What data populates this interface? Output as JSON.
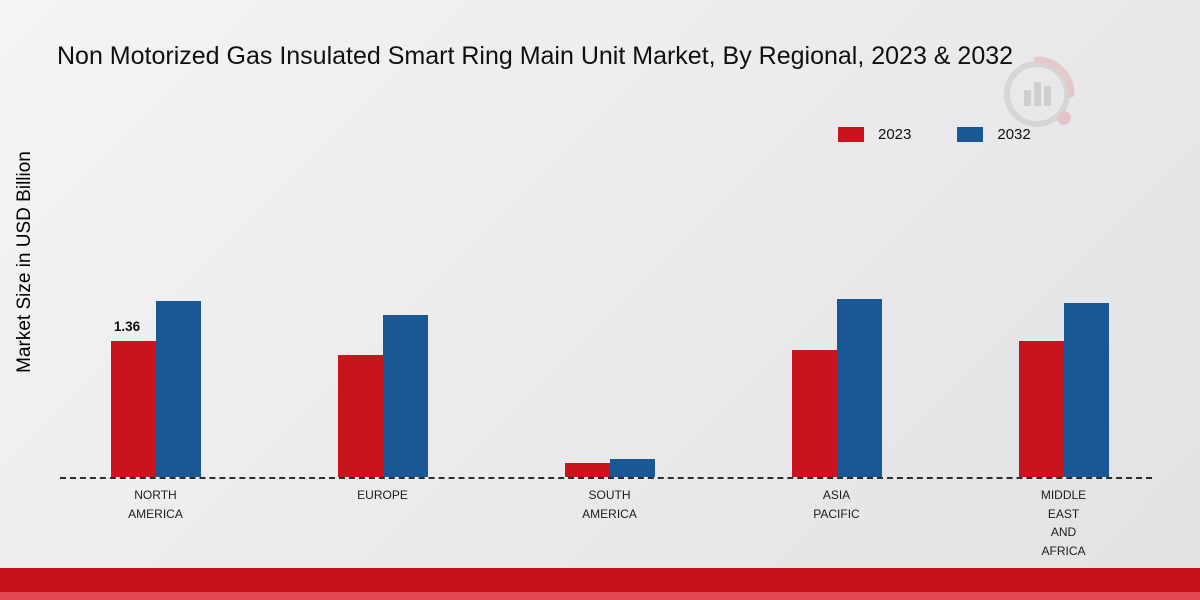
{
  "title": "Non Motorized Gas Insulated Smart Ring Main Unit Market, By Regional, 2023 & 2032",
  "ylabel": "Market Size in USD Billion",
  "colors": {
    "series_2023": "#c9141e",
    "series_2032": "#1a5795",
    "footer_band": "#c8101a"
  },
  "chart_data": {
    "type": "bar",
    "title": "Non Motorized Gas Insulated Smart Ring Main Unit Market, By Regional, 2023 & 2032",
    "xlabel": "",
    "ylabel": "Market Size in USD Billion",
    "ylim": [
      0,
      2
    ],
    "grid": false,
    "baseline_style": "dashed",
    "legend_position": "top-right",
    "categories": [
      "NORTH AMERICA",
      "EUROPE",
      "SOUTH AMERICA",
      "ASIA PACIFIC",
      "MIDDLE EAST AND AFRICA"
    ],
    "series": [
      {
        "name": "2023",
        "color": "#c9141e",
        "values": [
          1.36,
          1.22,
          0.14,
          1.27,
          1.36
        ]
      },
      {
        "name": "2032",
        "color": "#1a5795",
        "values": [
          1.76,
          1.62,
          0.18,
          1.78,
          1.74
        ]
      }
    ],
    "annotations": [
      {
        "text": "1.36",
        "series": "2023",
        "category": "NORTH AMERICA"
      }
    ]
  },
  "category_label_lines": [
    [
      "NORTH",
      "AMERICA"
    ],
    [
      "EUROPE"
    ],
    [
      "SOUTH",
      "AMERICA"
    ],
    [
      "ASIA",
      "PACIFIC"
    ],
    [
      "MIDDLE",
      "EAST",
      "AND",
      "AFRICA"
    ]
  ]
}
